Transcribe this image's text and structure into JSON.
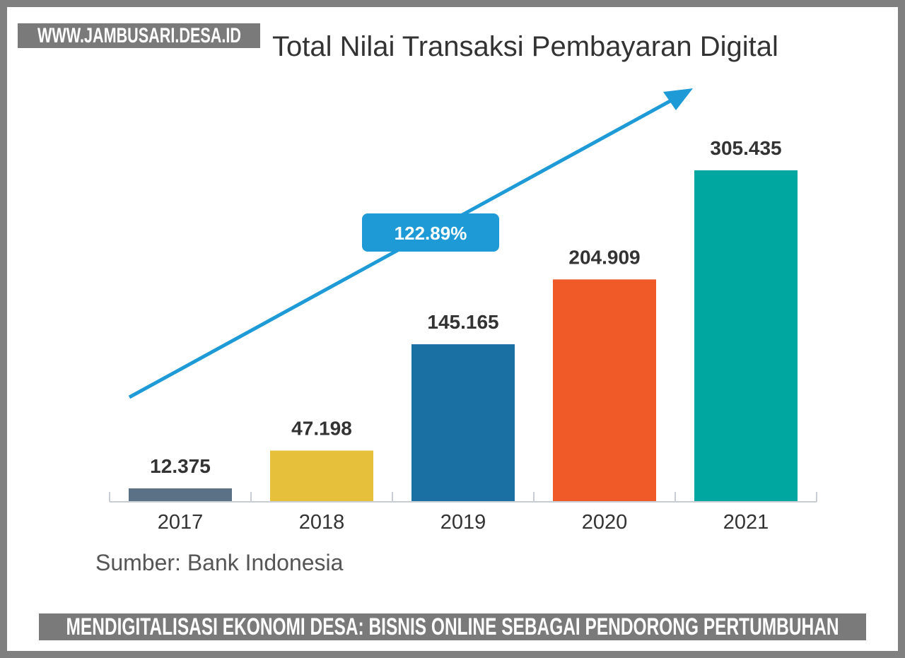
{
  "watermark_top": "WWW.JAMBUSARI.DESA.ID",
  "watermark_bottom": "MENDIGITALISASI EKONOMI DESA: BISNIS ONLINE SEBAGAI PENDORONG PERTUMBUHAN",
  "chart_data": {
    "type": "bar",
    "title": "Total Nilai Transaksi Pembayaran Digital",
    "source": "Sumber: Bank Indonesia",
    "categories": [
      "2017",
      "2018",
      "2019",
      "2020",
      "2021"
    ],
    "values": [
      12.375,
      47.198,
      145.165,
      204.909,
      305.435
    ],
    "data_labels": [
      "12.375",
      "47.198",
      "145.165",
      "204.909",
      "305.435"
    ],
    "colors": [
      "#5b7186",
      "#e6c03a",
      "#1a6fa3",
      "#f05a28",
      "#00a6a0"
    ],
    "ylim": [
      0,
      305.435
    ],
    "grid": false,
    "annotation": {
      "text": "122.89%",
      "type": "growth-arrow",
      "color": "#1e9bd7"
    }
  }
}
